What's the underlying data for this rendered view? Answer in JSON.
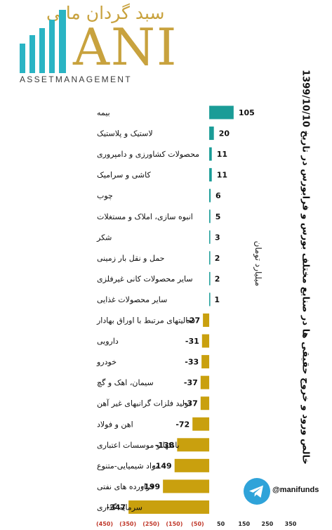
{
  "logo": {
    "brand_persian": "سبد گردان مانی",
    "word": "ANI",
    "subtitle": "ASSETMANAGEMENT"
  },
  "chart_data": {
    "type": "bar",
    "orientation": "horizontal",
    "title": "خالص ورود و خروج حقیقی ها در صنایع مختلف بورس و فرابورس در تاریخ 1399/10/10",
    "unit": "میلیارد تومان",
    "categories": [
      "بیمه",
      "لاستیک و پلاستیک",
      "محصولات کشاورزی و دامپروری",
      "کاشی و سرامیک",
      "چوب",
      "انبوه سازی، املاک و مستغلات",
      "شکر",
      "حمل و نقل بار زمینی",
      "سایر محصولات کانی غیرفلزی",
      "سایر محصولات غذایی",
      "فعالیتهای مرتبط با اوراق بهادار",
      "دارویی",
      "خودرو",
      "سیمان، اهک و گچ",
      "تولید فلزات گرانبهای غیر آهن",
      "اهن و فولاد",
      "بانکها و موسسات اعتباری",
      "مواد شیمیایی-متنوع",
      "فراورده های نفتی",
      "سرمایه گذاری"
    ],
    "values": [
      105,
      20,
      11,
      11,
      6,
      5,
      3,
      2,
      2,
      1,
      -27,
      -31,
      -33,
      -37,
      -37,
      -72,
      -138,
      -149,
      -199,
      -347
    ],
    "value_labels": [
      "105",
      "20",
      "11",
      "11",
      "6",
      "5",
      "3",
      "2",
      "2",
      "1",
      "-27",
      "-31",
      "-33",
      "-37",
      "-37",
      "-72",
      "-138",
      "-149",
      "-199",
      "-347"
    ],
    "xlim": [
      -450,
      350
    ],
    "xticks": [
      -450,
      -350,
      -250,
      -150,
      -50,
      50,
      150,
      250,
      350
    ],
    "xtick_labels": [
      "(450)",
      "(350)",
      "(250)",
      "(150)",
      "(50)",
      "50",
      "150",
      "250",
      "350"
    ],
    "colors": {
      "positive": "#1a9c97",
      "negative": "#c9a00e",
      "negative_tick": "#c0392b",
      "positive_tick": "#222222"
    },
    "grid": false,
    "legend": "none"
  },
  "telegram": {
    "icon": "telegram-icon",
    "handle": "@manifunds"
  }
}
